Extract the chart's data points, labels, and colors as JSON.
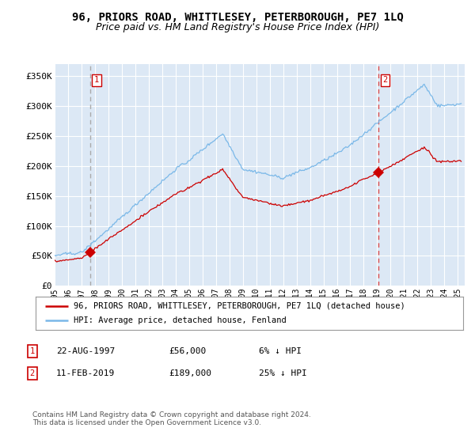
{
  "title": "96, PRIORS ROAD, WHITTLESEY, PETERBOROUGH, PE7 1LQ",
  "subtitle": "Price paid vs. HM Land Registry's House Price Index (HPI)",
  "ylabel_ticks": [
    "£0",
    "£50K",
    "£100K",
    "£150K",
    "£200K",
    "£250K",
    "£300K",
    "£350K"
  ],
  "ylim": [
    0,
    370000
  ],
  "xlim_start": 1995.0,
  "xlim_end": 2025.5,
  "purchase1_date": 1997.64,
  "purchase1_price": 56000,
  "purchase2_date": 2019.12,
  "purchase2_price": 189000,
  "hpi_color": "#7ab8e8",
  "property_color": "#cc0000",
  "vline1_color": "#aaaaaa",
  "vline2_color": "#e05050",
  "bg_color": "#dce8f5",
  "grid_color": "#ffffff",
  "legend_line1": "96, PRIORS ROAD, WHITTLESEY, PETERBOROUGH, PE7 1LQ (detached house)",
  "legend_line2": "HPI: Average price, detached house, Fenland",
  "table_row1": [
    "1",
    "22-AUG-1997",
    "£56,000",
    "6% ↓ HPI"
  ],
  "table_row2": [
    "2",
    "11-FEB-2019",
    "£189,000",
    "25% ↓ HPI"
  ],
  "footnote": "Contains HM Land Registry data © Crown copyright and database right 2024.\nThis data is licensed under the Open Government Licence v3.0.",
  "title_fontsize": 10,
  "subtitle_fontsize": 9
}
